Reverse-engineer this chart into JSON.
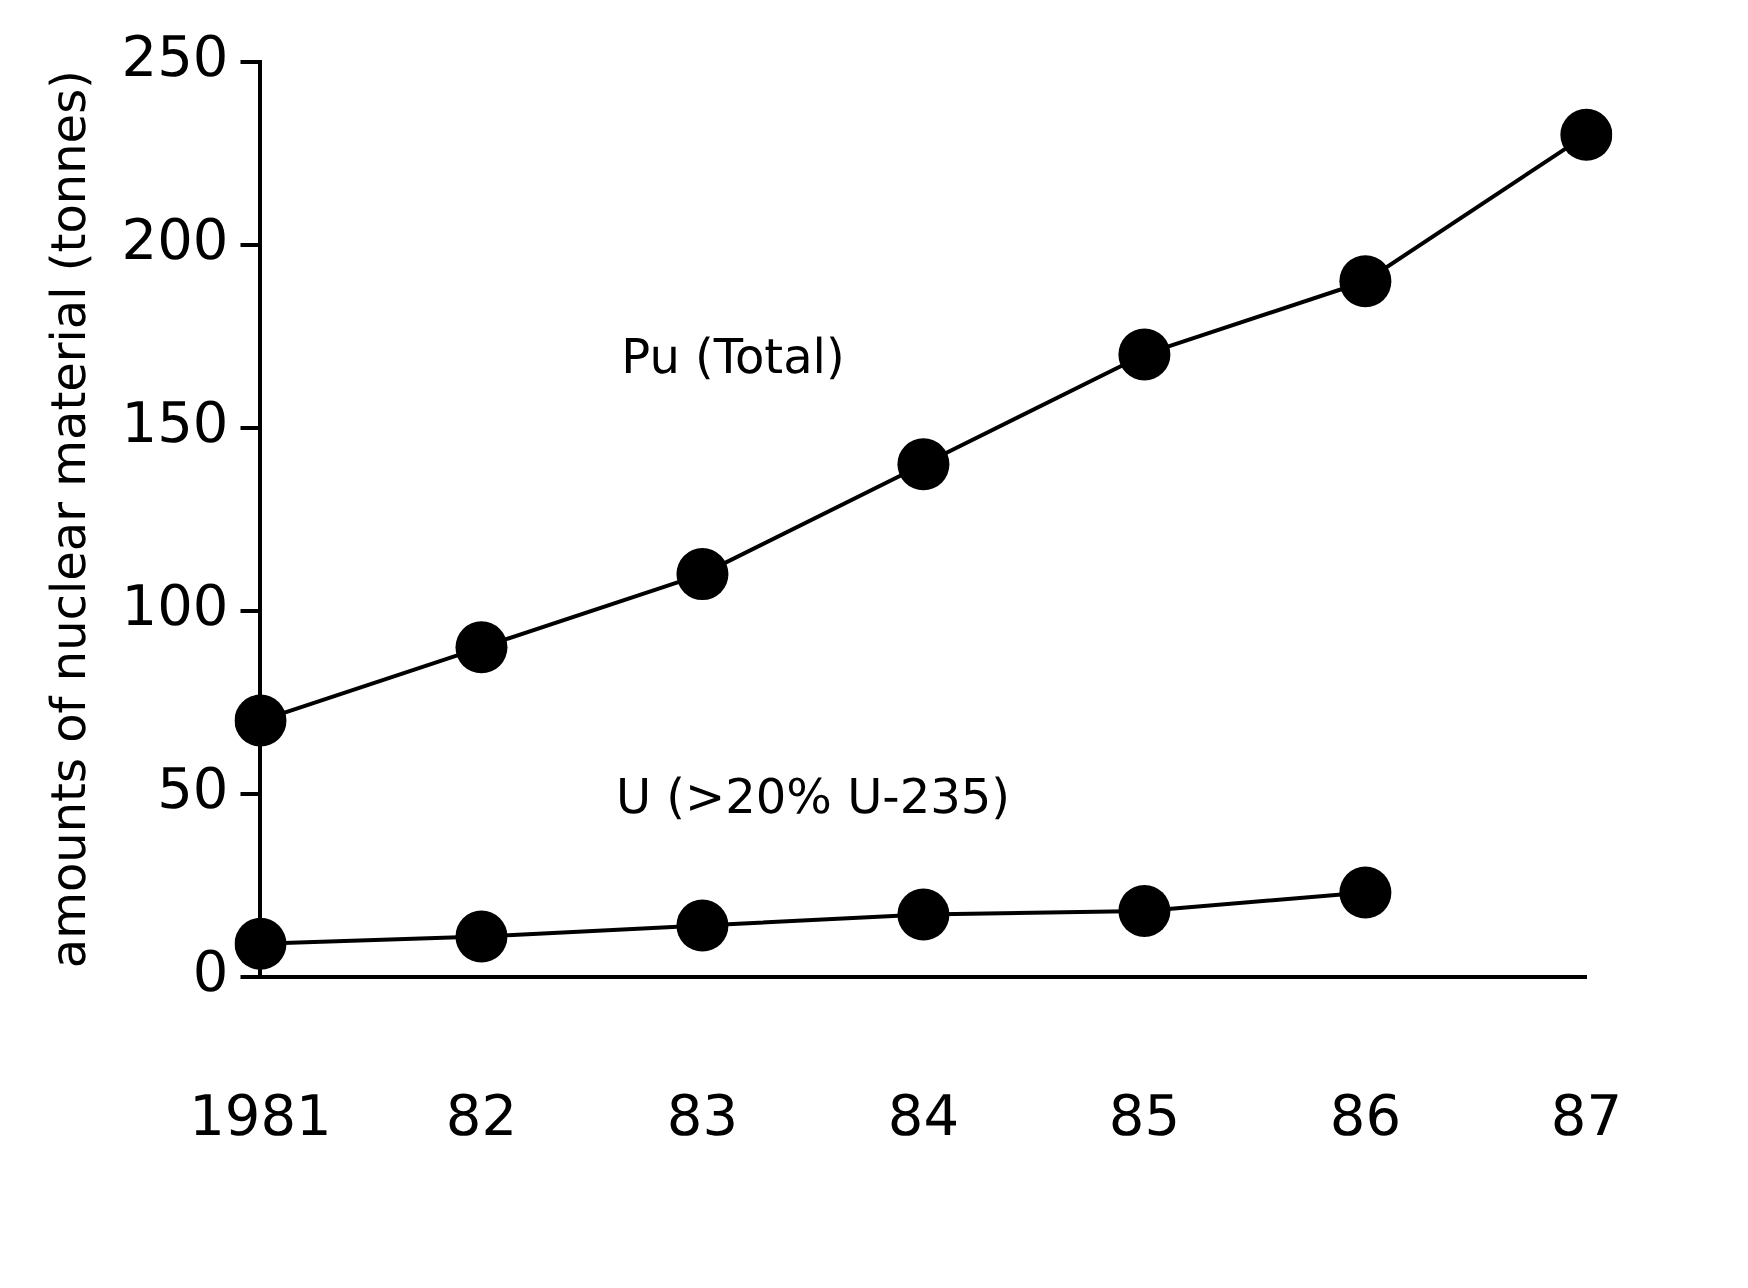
{
  "chart_data": {
    "type": "line",
    "ylabel": "amounts of nuclear material (tonnes)",
    "categories": [
      "1981",
      "82",
      "83",
      "84",
      "85",
      "86",
      "87"
    ],
    "series": [
      {
        "name": "Pu (Total)",
        "color": "#000000",
        "values": [
          70,
          90,
          110,
          140,
          170,
          190,
          230
        ]
      },
      {
        "name": "U (>20% U-235)",
        "color": "#000000",
        "values": [
          9,
          11,
          14,
          17,
          18,
          23,
          null
        ]
      }
    ],
    "ylim": [
      0,
      250
    ],
    "yticks": [
      0,
      50,
      100,
      150,
      200,
      250
    ],
    "grid": false,
    "legend": false,
    "marker": "circle",
    "line_style": "solid"
  }
}
